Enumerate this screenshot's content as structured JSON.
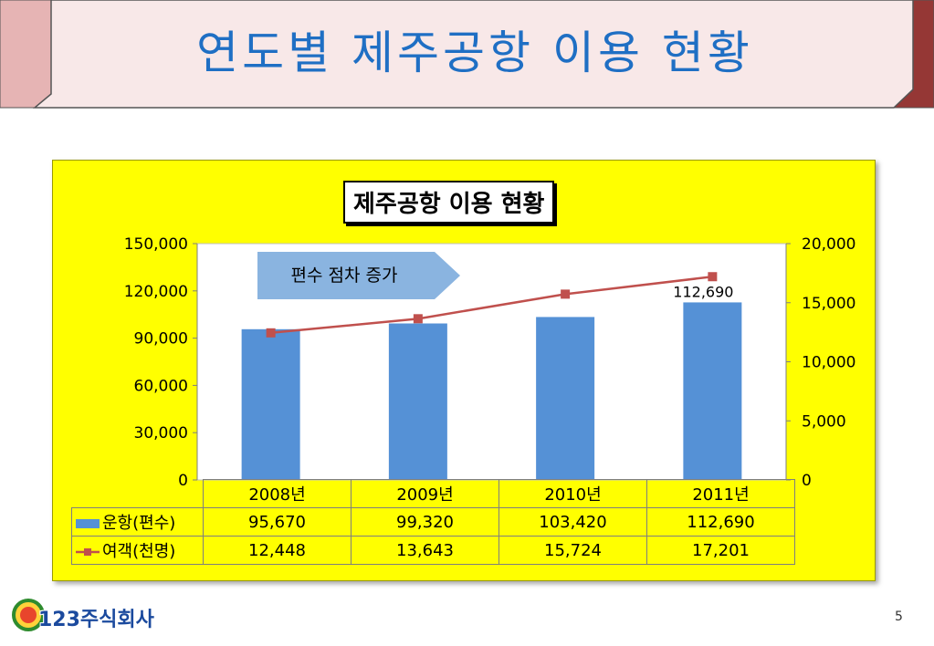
{
  "slide": {
    "title": "연도별 제주공항 이용 현황",
    "page_number": "5",
    "logo_text": "123주식회사"
  },
  "colors": {
    "title_text": "#1f6fc4",
    "panel_bg": "#ffff00",
    "bar": "#5591d6",
    "line": "#c0504d",
    "banner_left": "#e6b4b4",
    "banner_right": "#953735"
  },
  "chart_data": {
    "type": "bar",
    "title": "제주공항 이용 현황",
    "annotation": "편수 점차 증가",
    "categories": [
      "2008년",
      "2009년",
      "2010년",
      "2011년"
    ],
    "series": [
      {
        "name": "운항(편수)",
        "type": "bar",
        "axis": "left",
        "values": [
          95670,
          99320,
          103420,
          112690
        ],
        "display": [
          "95,670",
          "99,320",
          "103,420",
          "112,690"
        ]
      },
      {
        "name": "여객(천명)",
        "type": "line",
        "axis": "right",
        "values": [
          12448,
          13643,
          15724,
          17201
        ],
        "display": [
          "12,448",
          "13,643",
          "15,724",
          "17,201"
        ]
      }
    ],
    "data_labels": [
      {
        "series": 0,
        "index": 3,
        "text": "112,690"
      }
    ],
    "y_left": {
      "min": 0,
      "max": 150000,
      "ticks": [
        "0",
        "30,000",
        "60,000",
        "90,000",
        "120,000",
        "150,000"
      ]
    },
    "y_right": {
      "min": 0,
      "max": 20000,
      "ticks": [
        "0",
        "5,000",
        "10,000",
        "15,000",
        "20,000"
      ]
    },
    "grid": false,
    "legend": "in data table"
  }
}
